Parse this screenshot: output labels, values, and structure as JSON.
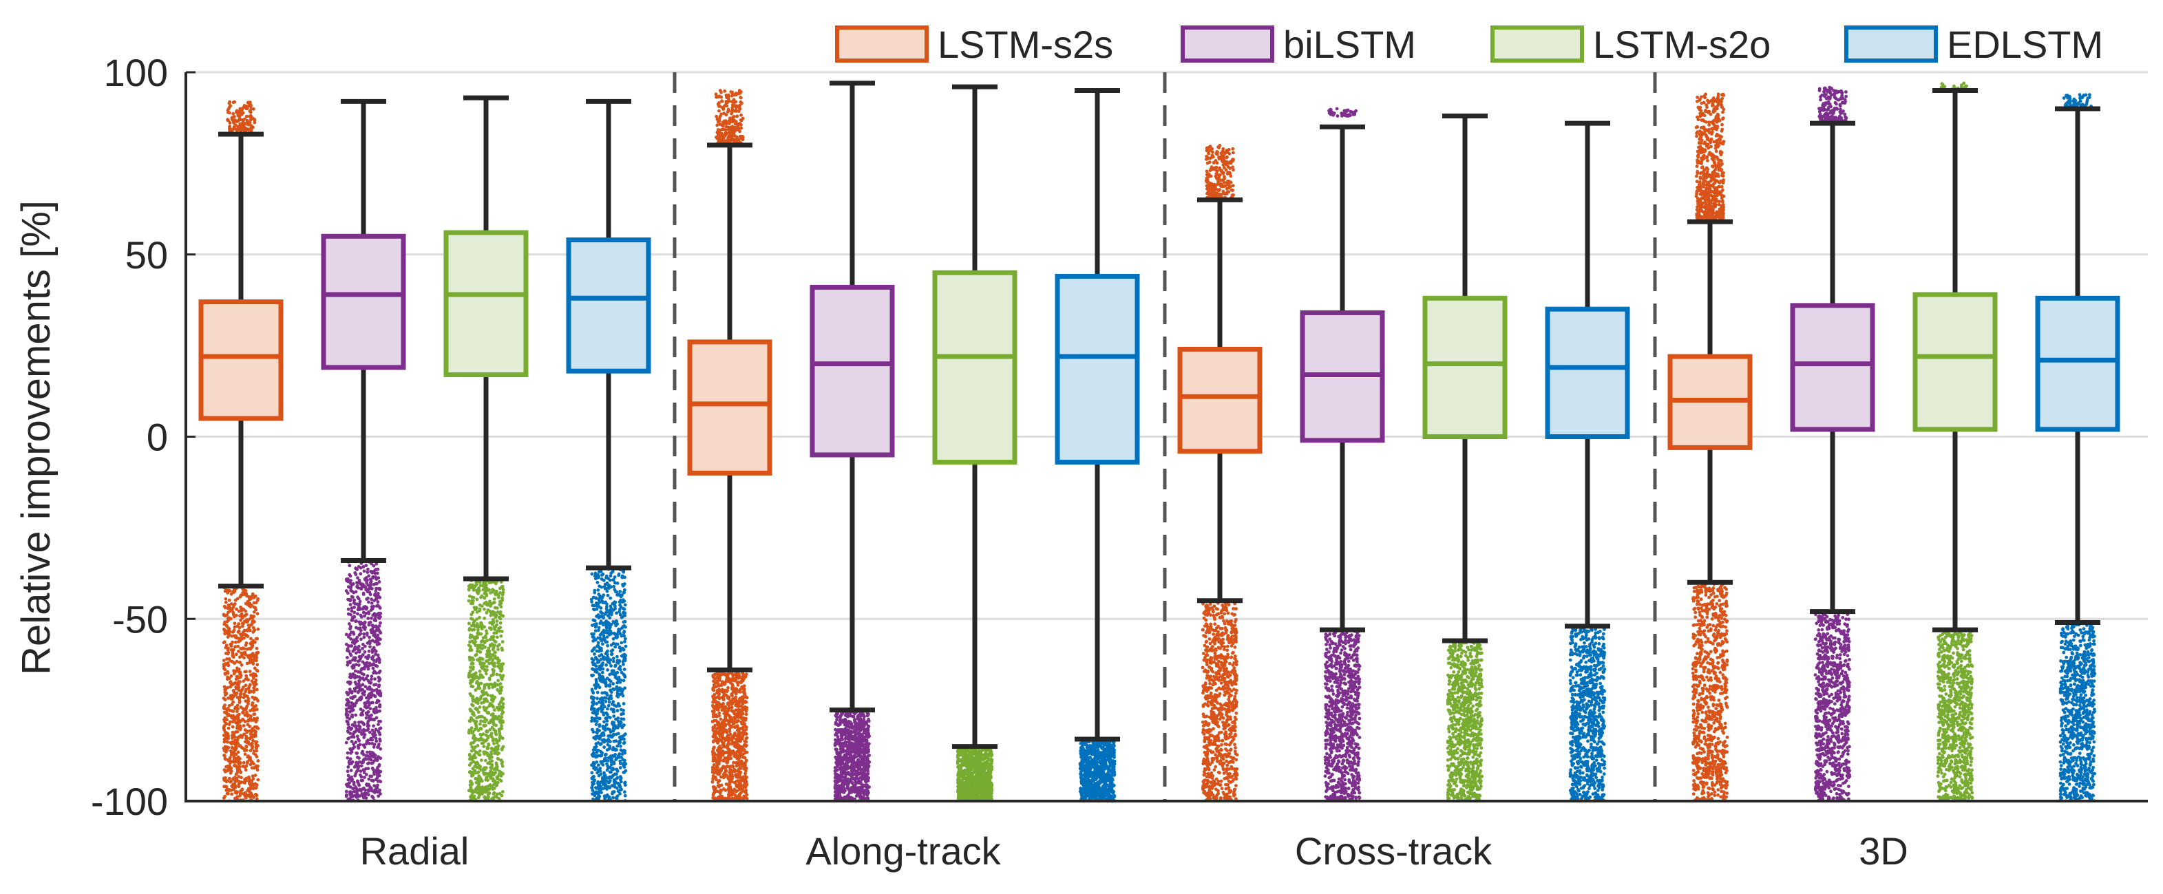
{
  "chart_data": {
    "type": "box",
    "title": "",
    "ylabel": "Relative improvements [%]",
    "xlabel": "",
    "ylim": [
      -100,
      100
    ],
    "yticks": [
      -100,
      -50,
      0,
      50,
      100
    ],
    "grid": "horizontal",
    "legend_position": "top-right",
    "groups": [
      "Radial",
      "Along-track",
      "Cross-track",
      "3D"
    ],
    "series": [
      {
        "name": "LSTM-s2s",
        "color": "#D95319",
        "fill": "#F7D9CA"
      },
      {
        "name": "biLSTM",
        "color": "#7E2F8E",
        "fill": "#E4D5E8"
      },
      {
        "name": "LSTM-s2o",
        "color": "#77AC30",
        "fill": "#E4EED6"
      },
      {
        "name": "EDLSTM",
        "color": "#0072BD",
        "fill": "#CCE3F2"
      }
    ],
    "boxes": [
      {
        "group": "Radial",
        "series": "LSTM-s2s",
        "whisker_low": -41,
        "q1": 5,
        "median": 22,
        "q3": 37,
        "whisker_high": 83,
        "outliers_high": [
          84,
          92
        ],
        "outliers_low": [
          -100,
          -41
        ]
      },
      {
        "group": "Radial",
        "series": "biLSTM",
        "whisker_low": -34,
        "q1": 19,
        "median": 39,
        "q3": 55,
        "whisker_high": 92,
        "outliers_high": null,
        "outliers_low": [
          -100,
          -34
        ]
      },
      {
        "group": "Radial",
        "series": "LSTM-s2o",
        "whisker_low": -39,
        "q1": 17,
        "median": 39,
        "q3": 56,
        "whisker_high": 93,
        "outliers_high": null,
        "outliers_low": [
          -100,
          -39
        ]
      },
      {
        "group": "Radial",
        "series": "EDLSTM",
        "whisker_low": -36,
        "q1": 18,
        "median": 38,
        "q3": 54,
        "whisker_high": 92,
        "outliers_high": null,
        "outliers_low": [
          -100,
          -36
        ]
      },
      {
        "group": "Along-track",
        "series": "LSTM-s2s",
        "whisker_low": -64,
        "q1": -10,
        "median": 9,
        "q3": 26,
        "whisker_high": 80,
        "outliers_high": [
          80,
          95
        ],
        "outliers_low": [
          -100,
          -64
        ]
      },
      {
        "group": "Along-track",
        "series": "biLSTM",
        "whisker_low": -75,
        "q1": -5,
        "median": 20,
        "q3": 41,
        "whisker_high": 97,
        "outliers_high": null,
        "outliers_low": [
          -100,
          -75
        ]
      },
      {
        "group": "Along-track",
        "series": "LSTM-s2o",
        "whisker_low": -85,
        "q1": -7,
        "median": 22,
        "q3": 45,
        "whisker_high": 96,
        "outliers_high": null,
        "outliers_low": [
          -100,
          -85
        ]
      },
      {
        "group": "Along-track",
        "series": "EDLSTM",
        "whisker_low": -83,
        "q1": -7,
        "median": 22,
        "q3": 44,
        "whisker_high": 95,
        "outliers_high": null,
        "outliers_low": [
          -100,
          -83
        ]
      },
      {
        "group": "Cross-track",
        "series": "LSTM-s2s",
        "whisker_low": -45,
        "q1": -4,
        "median": 11,
        "q3": 24,
        "whisker_high": 65,
        "outliers_high": [
          65,
          80
        ],
        "outliers_low": [
          -100,
          -45
        ]
      },
      {
        "group": "Cross-track",
        "series": "biLSTM",
        "whisker_low": -53,
        "q1": -1,
        "median": 17,
        "q3": 34,
        "whisker_high": 85,
        "outliers_high": [
          88,
          90
        ],
        "outliers_low": [
          -100,
          -53
        ]
      },
      {
        "group": "Cross-track",
        "series": "LSTM-s2o",
        "whisker_low": -56,
        "q1": 0,
        "median": 20,
        "q3": 38,
        "whisker_high": 88,
        "outliers_high": null,
        "outliers_low": [
          -100,
          -56
        ]
      },
      {
        "group": "Cross-track",
        "series": "EDLSTM",
        "whisker_low": -52,
        "q1": 0,
        "median": 19,
        "q3": 35,
        "whisker_high": 86,
        "outliers_high": null,
        "outliers_low": [
          -100,
          -52
        ]
      },
      {
        "group": "3D",
        "series": "LSTM-s2s",
        "whisker_low": -40,
        "q1": -3,
        "median": 10,
        "q3": 22,
        "whisker_high": 59,
        "outliers_high": [
          59,
          94
        ],
        "outliers_low": [
          -100,
          -40
        ]
      },
      {
        "group": "3D",
        "series": "biLSTM",
        "whisker_low": -48,
        "q1": 2,
        "median": 20,
        "q3": 36,
        "whisker_high": 86,
        "outliers_high": [
          86,
          96
        ],
        "outliers_low": [
          -100,
          -48
        ]
      },
      {
        "group": "3D",
        "series": "LSTM-s2o",
        "whisker_low": -53,
        "q1": 2,
        "median": 22,
        "q3": 39,
        "whisker_high": 95,
        "outliers_high": [
          95,
          97
        ],
        "outliers_low": [
          -100,
          -53
        ]
      },
      {
        "group": "3D",
        "series": "EDLSTM",
        "whisker_low": -51,
        "q1": 2,
        "median": 21,
        "q3": 38,
        "whisker_high": 90,
        "outliers_high": [
          90,
          94
        ],
        "outliers_low": [
          -100,
          -51
        ]
      }
    ]
  }
}
